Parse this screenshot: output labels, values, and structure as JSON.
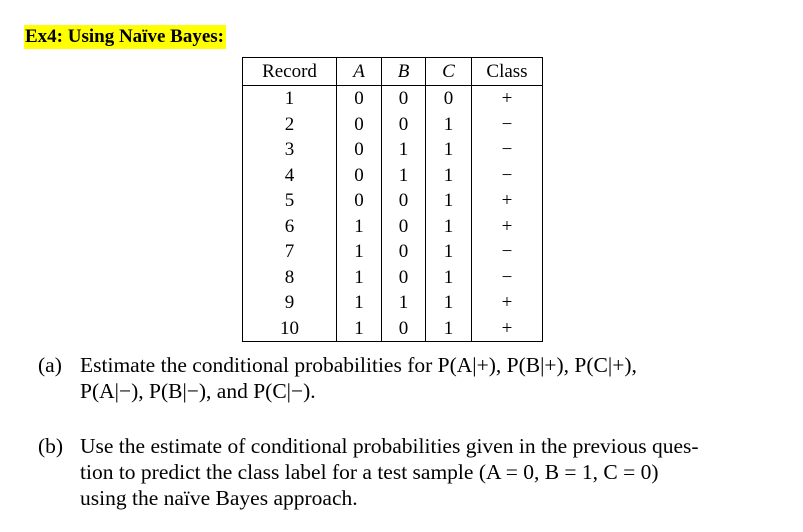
{
  "title": "Ex4: Using Naïve Bayes:",
  "table": {
    "headers": [
      "Record",
      "A",
      "B",
      "C",
      "Class"
    ],
    "rows": [
      [
        "1",
        "0",
        "0",
        "0",
        "+"
      ],
      [
        "2",
        "0",
        "0",
        "1",
        "−"
      ],
      [
        "3",
        "0",
        "1",
        "1",
        "−"
      ],
      [
        "4",
        "0",
        "1",
        "1",
        "−"
      ],
      [
        "5",
        "0",
        "0",
        "1",
        "+"
      ],
      [
        "6",
        "1",
        "0",
        "1",
        "+"
      ],
      [
        "7",
        "1",
        "0",
        "1",
        "−"
      ],
      [
        "8",
        "1",
        "0",
        "1",
        "−"
      ],
      [
        "9",
        "1",
        "1",
        "1",
        "+"
      ],
      [
        "10",
        "1",
        "0",
        "1",
        "+"
      ]
    ]
  },
  "questions": [
    {
      "label": "(a)",
      "lines": [
        "Estimate the conditional probabilities for P(A|+), P(B|+), P(C|+),",
        "P(A|−), P(B|−), and P(C|−)."
      ]
    },
    {
      "label": "(b)",
      "lines": [
        "Use the estimate of conditional probabilities given in the previous ques-",
        "tion to predict the class label for a test sample (A = 0, B = 1, C = 0)",
        "using the naïve Bayes approach."
      ]
    }
  ]
}
